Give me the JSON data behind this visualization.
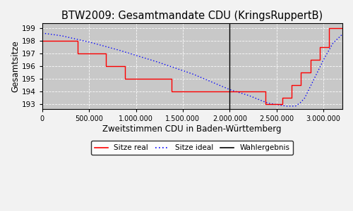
{
  "title": "BTW2009: Gesamtmandate CDU (KringsRuppertB)",
  "xlabel": "Zweitstimmen CDU in Baden-Württemberg",
  "ylabel": "Gesamtsitze",
  "bg_color": "#c8c8c8",
  "fig_bg_color": "#f2f2f2",
  "wahlergebnis": 2000000,
  "xlim": [
    0,
    3200000
  ],
  "ylim": [
    192.6,
    199.4
  ],
  "yticks": [
    193,
    194,
    195,
    196,
    197,
    198,
    199
  ],
  "xticks": [
    0,
    500000,
    1000000,
    1500000,
    2000000,
    2500000,
    3000000
  ],
  "xtick_labels": [
    "0",
    "500.000",
    "1.000.000",
    "1.500.000",
    "2.000.000",
    "2.500.000",
    "3.000.000"
  ],
  "legend_labels": [
    "Sitze real",
    "Sitze ideal",
    "Wahlergebnis"
  ],
  "x_key": [
    0,
    200000,
    500000,
    800000,
    1200000,
    1600000,
    2000000,
    2200000,
    2400000,
    2600000,
    2700000,
    2750000,
    2800000,
    2900000,
    3000000,
    3100000,
    3200000
  ],
  "y_key": [
    198.6,
    198.4,
    197.9,
    197.3,
    196.4,
    195.4,
    194.15,
    193.7,
    193.1,
    192.85,
    192.85,
    193.1,
    193.5,
    195.0,
    196.5,
    197.8,
    198.5
  ],
  "real_steps_x": [
    0,
    380000,
    380000,
    680000,
    680000,
    880000,
    880000,
    1080000,
    1080000,
    1380000,
    1380000,
    1480000,
    1480000,
    2080000,
    2080000,
    2380000,
    2380000,
    2480000,
    2480000,
    2560000,
    2560000,
    2660000,
    2660000,
    2760000,
    2760000,
    2860000,
    2860000,
    2960000,
    2960000,
    3060000,
    3060000,
    3200000
  ],
  "real_steps_y": [
    198,
    198,
    197,
    197,
    196,
    196,
    195,
    195,
    195,
    195,
    194,
    194,
    194,
    194,
    194,
    194,
    193,
    193,
    193,
    193,
    193.5,
    193.5,
    194.5,
    194.5,
    195.5,
    195.5,
    196.5,
    196.5,
    197.5,
    197.5,
    199,
    199
  ]
}
